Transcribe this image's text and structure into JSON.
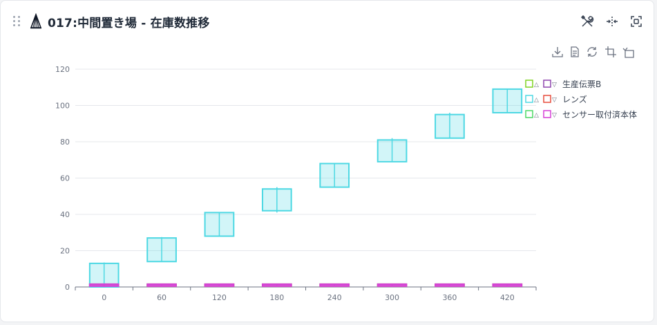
{
  "panel": {
    "title": "017:中間置き場 - 在庫数推移",
    "icons": [
      "wrench-screwdriver-icon",
      "move-horizontal-icon",
      "fullscreen-icon"
    ]
  },
  "toolbox": [
    "download-icon",
    "data-view-icon",
    "refresh-icon",
    "crop-icon",
    "restore-icon"
  ],
  "chart_data": {
    "type": "candlestick",
    "categories": [
      "0",
      "60",
      "120",
      "180",
      "240",
      "300",
      "360",
      "420"
    ],
    "ylim": [
      0,
      120
    ],
    "yticks": [
      0,
      20,
      40,
      60,
      80,
      100,
      120
    ],
    "grid": true,
    "legend_position": "right",
    "legend_glyphs": {
      "up": "△",
      "down": "▽"
    },
    "series": [
      {
        "name": "生産伝票B",
        "up_color": "#7ed321",
        "down_color": "#8e44ad",
        "values": [
          [
            0,
            1,
            0,
            1
          ],
          [
            0,
            1,
            0,
            1
          ],
          [
            0,
            1,
            0,
            1
          ],
          [
            0,
            1,
            0,
            1
          ],
          [
            0,
            1,
            0,
            1
          ],
          [
            0,
            1,
            0,
            1
          ],
          [
            0,
            1,
            0,
            1
          ],
          [
            0,
            1,
            0,
            1
          ]
        ]
      },
      {
        "name": "レンズ",
        "up_color": "#4dd8e3",
        "down_color": "#e74c3c",
        "values": [
          [
            0,
            13,
            0,
            13.5
          ],
          [
            14,
            27,
            14,
            27.5
          ],
          [
            28,
            41,
            28,
            41
          ],
          [
            42,
            54,
            41,
            55
          ],
          [
            55,
            68,
            55,
            68
          ],
          [
            69,
            81,
            69,
            82
          ],
          [
            82,
            95,
            82,
            96
          ],
          [
            96,
            109,
            96,
            109
          ]
        ]
      },
      {
        "name": "センサー取付済本体",
        "up_color": "#4cd964",
        "down_color": "#d63fd6",
        "values": [
          [
            1,
            0,
            0,
            1
          ],
          [
            1,
            0,
            0,
            1
          ],
          [
            1,
            0,
            0,
            1
          ],
          [
            1,
            0,
            0,
            1
          ],
          [
            1,
            0,
            0,
            1
          ],
          [
            1,
            0,
            0,
            1
          ],
          [
            1,
            0,
            0,
            1
          ],
          [
            1,
            0,
            0,
            1
          ]
        ]
      }
    ]
  }
}
